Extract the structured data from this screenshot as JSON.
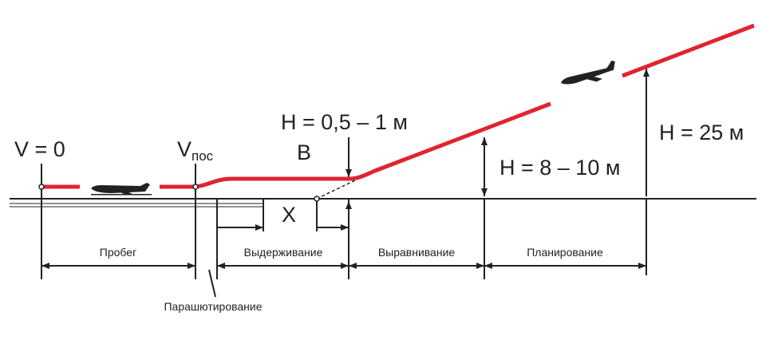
{
  "labels": {
    "v_zero": "V = 0",
    "v_pos": "V",
    "v_pos_sub": "пос",
    "h_flare": "H = 0,5 – 1 м",
    "point_b": "B",
    "h_level": "H = 8 – 10 м",
    "h_glide": "H = 25 м",
    "x": "X",
    "rollout": "Пробег",
    "holding": "Выдерживание",
    "leveling": "Выравнивание",
    "gliding": "Планирование",
    "parachuting": "Парашютирование"
  }
}
